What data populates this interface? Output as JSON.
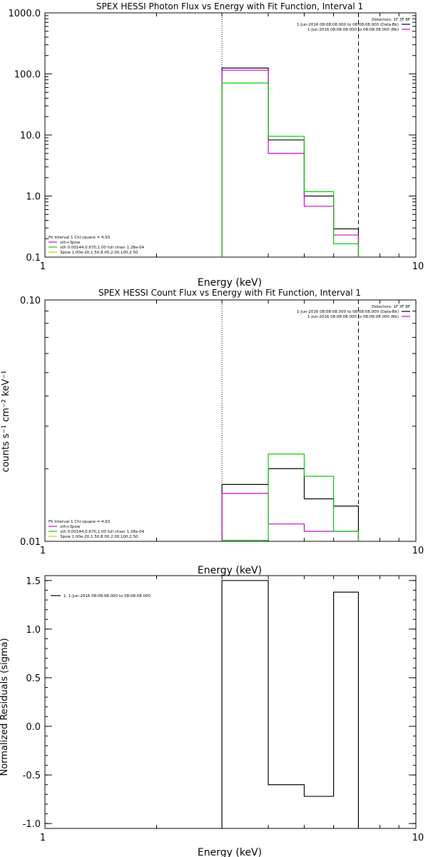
{
  "colors": {
    "black": "#000000",
    "magenta": "#cc00cc",
    "green": "#00cc00",
    "yellow": "#cccc00"
  },
  "chart_data": [
    {
      "type": "line",
      "title": "SPEX HESSI Photon Flux vs Energy with Fit Function, Interval 1",
      "xlabel": "Energy (keV)",
      "ylabel": "",
      "xscale": "log",
      "yscale": "log",
      "xlim": [
        1,
        10
      ],
      "ylim": [
        0.1,
        1000
      ],
      "xticks": [
        "1",
        "10"
      ],
      "yticks": [
        "0.1",
        "1.0",
        "10.0",
        "100.0",
        "1000.0"
      ],
      "vlines": {
        "dotted": 3.0,
        "dashed": 7.0
      },
      "bin_edges": [
        3.0,
        4.0,
        5.0,
        6.0,
        7.0
      ],
      "series": [
        {
          "color": "black",
          "values": [
            125,
            8.3,
            1.0,
            0.29
          ]
        },
        {
          "color": "magenta",
          "values": [
            115,
            5.0,
            0.68,
            0.23
          ]
        },
        {
          "color": "green",
          "values": [
            71,
            9.5,
            1.18,
            0.165
          ]
        }
      ],
      "legend_top": [
        "Detectors: 1F 3F 8F",
        "1-Jun-2016 08:08:08.000 to 08:08:08.000 (Data-Bk)",
        "1-Jun-2016 08:08:08.000 to 08:08:08.000 (Bk)"
      ],
      "legend_top_colors": [
        "",
        "black",
        "magenta"
      ],
      "legend_bottom": [
        "Fit Interval 1   Chi-square = 4.93",
        "vth+3pow",
        "vth 0.00144,0.670,1.00  full chian 1.28e-04",
        "3pow 1.00e-20,1.50,8.00,2.00,100,2.50"
      ],
      "legend_bottom_colors": [
        "",
        "magenta",
        "green",
        "yellow"
      ]
    },
    {
      "type": "line",
      "title": "SPEX HESSI Count Flux vs Energy with Fit Function, Interval 1",
      "xlabel": "Energy (keV)",
      "ylabel": "counts s⁻¹ cm⁻² keV⁻¹",
      "xscale": "log",
      "yscale": "log",
      "xlim": [
        1,
        10
      ],
      "ylim": [
        0.01,
        0.1
      ],
      "xticks": [
        "1",
        "10"
      ],
      "yticks": [
        "0.01",
        "0.10"
      ],
      "vlines": {
        "dotted": 3.0,
        "dashed": 7.0
      },
      "bin_edges": [
        3.0,
        4.0,
        5.0,
        6.0,
        7.0
      ],
      "series": [
        {
          "color": "black",
          "values": [
            0.0172,
            0.02,
            0.015,
            0.014
          ]
        },
        {
          "color": "magenta",
          "values": [
            0.0158,
            0.0118,
            0.011,
            0.011
          ]
        },
        {
          "color": "green",
          "values": [
            0.0101,
            0.023,
            0.0186,
            0.011
          ]
        }
      ],
      "legend_top": [
        "Detectors: 1F 3F 8F",
        "1-Jun-2016 08:08:08.000 to 08:08:08.000 (Data-Bk)",
        "1-Jun-2016 08:08:08.000 to 08:08:08.000 (Bk)"
      ],
      "legend_top_colors": [
        "",
        "black",
        "magenta"
      ],
      "legend_bottom": [
        "Fit Interval 1   Chi-square = 4.93",
        "vth+3pow",
        "vth 0.00144,0.670,1.00  full chian 1.28e-04",
        "3pow 1.00e-20,1.50,8.00,2.00,100,2.50"
      ],
      "legend_bottom_colors": [
        "",
        "magenta",
        "green",
        "yellow"
      ]
    },
    {
      "type": "line",
      "title": "",
      "xlabel": "Energy (keV)",
      "ylabel": "Normalized Residuals (sigma)",
      "xscale": "log",
      "yscale": "linear",
      "xlim": [
        1,
        10
      ],
      "ylim": [
        -1.05,
        1.55
      ],
      "xticks": [
        "1",
        "10"
      ],
      "yticks": [
        "-1.0",
        "-0.5",
        "0.0",
        "0.5",
        "1.0",
        "1.5"
      ],
      "bin_edges": [
        3.0,
        4.0,
        5.0,
        6.0,
        7.0
      ],
      "series": [
        {
          "color": "black",
          "values": [
            1.5,
            -0.6,
            -0.72,
            1.38
          ]
        }
      ],
      "legend_top_left": "1. 1-Jun-2016 08:08:08.000 to 08:08:08.000"
    }
  ]
}
